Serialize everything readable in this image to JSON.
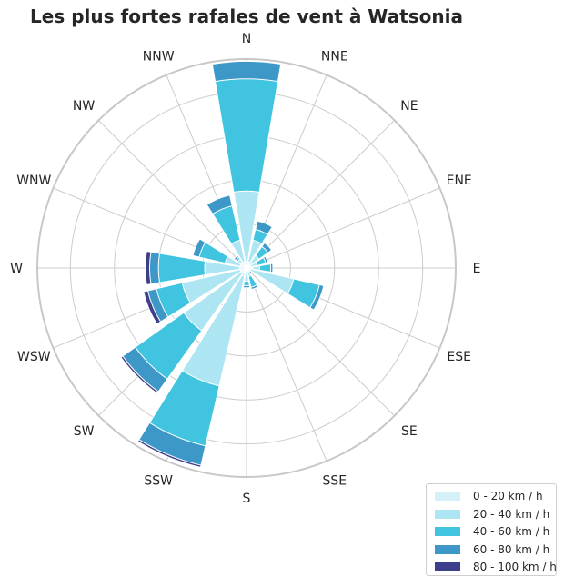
{
  "chart_data": {
    "type": "windrose",
    "title": "Les plus fortes rafales de vent à Watsonia",
    "directions": [
      "N",
      "NNE",
      "NE",
      "ENE",
      "E",
      "ESE",
      "SE",
      "SSE",
      "S",
      "SSW",
      "SW",
      "WSW",
      "W",
      "WNW",
      "NW",
      "NNW"
    ],
    "radial_max": 9.5,
    "ring_values": [
      2,
      4,
      6,
      8
    ],
    "grid": true,
    "legend_position": "bottom-right",
    "series": [
      {
        "name": "0 - 20 km / h",
        "color": "#d4f1f9",
        "values": [
          0.3,
          0.3,
          0.2,
          0.2,
          0.3,
          0.2,
          0.1,
          0.1,
          0.2,
          0.4,
          0.3,
          0.3,
          0.3,
          0.3,
          0.3,
          0.3
        ]
      },
      {
        "name": "20 - 40 km / h",
        "color": "#ade6f2",
        "values": [
          3.5,
          1.3,
          0.7,
          0.5,
          0.6,
          2.2,
          0.1,
          0.4,
          0.6,
          5.5,
          3.5,
          3.0,
          1.9,
          1.0,
          0.5,
          1.3
        ]
      },
      {
        "name": "40 - 60 km / h",
        "color": "#40c4df",
        "values": [
          8.6,
          1.8,
          1.2,
          0.9,
          1.1,
          3.4,
          0.2,
          0.9,
          0.8,
          8.3,
          6.2,
          4.2,
          4.0,
          2.2,
          0.6,
          2.9
        ]
      },
      {
        "name": "60 - 80 km / h",
        "color": "#3d98c8",
        "values": [
          9.4,
          2.2,
          1.4,
          1.0,
          1.2,
          3.6,
          0.3,
          1.0,
          0.9,
          9.2,
          6.9,
          4.6,
          4.4,
          2.5,
          0.7,
          3.4
        ]
      },
      {
        "name": "80 - 100 km / h",
        "color": "#3e3f8a",
        "values": [
          9.4,
          2.2,
          1.4,
          1.0,
          1.2,
          3.6,
          0.3,
          1.0,
          0.9,
          9.3,
          7.0,
          4.8,
          4.6,
          2.5,
          0.7,
          3.4
        ]
      }
    ]
  }
}
